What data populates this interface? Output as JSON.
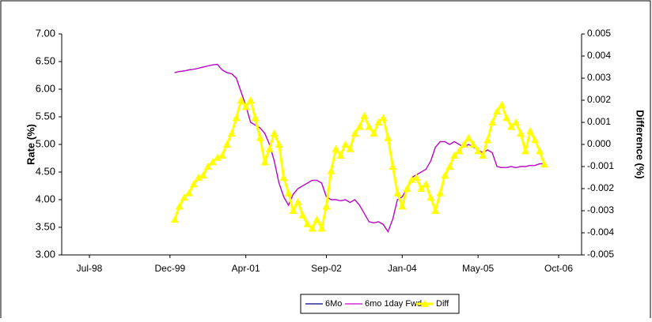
{
  "chart_data": {
    "type": "line",
    "y_label": "Rate (%)",
    "y2_label": "Difference (%)",
    "x": [
      "Jan-00",
      "Feb-00",
      "Mar-00",
      "Apr-00",
      "May-00",
      "Jun-00",
      "Jul-00",
      "Aug-00",
      "Sep-00",
      "Oct-00",
      "Nov-00",
      "Dec-00",
      "Jan-01",
      "Feb-01",
      "Mar-01",
      "Apr-01",
      "May-01",
      "Jun-01",
      "Jul-01",
      "Aug-01",
      "Sep-01",
      "Oct-01",
      "Nov-01",
      "Dec-01",
      "Jan-02",
      "Feb-02",
      "Mar-02",
      "Apr-02",
      "May-02",
      "Jun-02",
      "Jul-02",
      "Aug-02",
      "Sep-02",
      "Oct-02",
      "Nov-02",
      "Dec-02",
      "Jan-03",
      "Feb-03",
      "Mar-03",
      "Apr-03",
      "May-03",
      "Jun-03",
      "Jul-03",
      "Aug-03",
      "Sep-03",
      "Oct-03",
      "Nov-03",
      "Dec-03",
      "Jan-04",
      "Feb-04",
      "Mar-04",
      "Apr-04",
      "May-04",
      "Jun-04",
      "Jul-04",
      "Aug-04",
      "Sep-04",
      "Oct-04",
      "Nov-04",
      "Dec-04",
      "Jan-05",
      "Feb-05",
      "Mar-05",
      "Apr-05",
      "May-05",
      "Jun-05",
      "Jul-05",
      "Aug-05",
      "Sep-05",
      "Oct-05",
      "Nov-05",
      "Dec-05",
      "Jan-06",
      "Feb-06",
      "Mar-06",
      "Apr-06",
      "May-06",
      "Jun-06",
      "Jul-06"
    ],
    "series": [
      {
        "name": "6Mo",
        "color": "#000080",
        "values": [
          6.3,
          6.32,
          6.33,
          6.35,
          6.36,
          6.38,
          6.4,
          6.42,
          6.44,
          6.45,
          6.35,
          6.3,
          6.28,
          6.2,
          5.95,
          5.7,
          5.4,
          5.35,
          5.3,
          5.2,
          5.0,
          4.7,
          4.3,
          4.05,
          3.9,
          4.1,
          4.2,
          4.25,
          4.3,
          4.35,
          4.35,
          4.3,
          4.05,
          4.0,
          4.0,
          3.98,
          4.0,
          3.95,
          4.0,
          3.9,
          3.75,
          3.6,
          3.58,
          3.6,
          3.55,
          3.42,
          3.65,
          4.0,
          4.05,
          4.2,
          4.4,
          4.45,
          4.5,
          4.55,
          4.7,
          4.95,
          5.05,
          5.05,
          5.0,
          5.05,
          5.0,
          4.95,
          5.0,
          4.95,
          4.9,
          4.85,
          4.9,
          4.85,
          4.6,
          4.58,
          4.58,
          4.6,
          4.58,
          4.6,
          4.6,
          4.62,
          4.62,
          4.65,
          4.65
        ]
      },
      {
        "name": "6mo 1day Fwd",
        "color": "#cc00cc",
        "values": [
          6.3,
          6.32,
          6.33,
          6.35,
          6.36,
          6.38,
          6.4,
          6.42,
          6.44,
          6.45,
          6.35,
          6.3,
          6.28,
          6.2,
          5.95,
          5.7,
          5.4,
          5.35,
          5.3,
          5.2,
          5.0,
          4.7,
          4.3,
          4.05,
          3.9,
          4.1,
          4.2,
          4.25,
          4.3,
          4.35,
          4.35,
          4.3,
          4.05,
          4.0,
          4.0,
          3.98,
          4.0,
          3.95,
          4.0,
          3.9,
          3.75,
          3.6,
          3.58,
          3.6,
          3.55,
          3.42,
          3.65,
          4.0,
          4.05,
          4.2,
          4.4,
          4.45,
          4.5,
          4.55,
          4.7,
          4.95,
          5.05,
          5.05,
          5.0,
          5.05,
          5.0,
          4.95,
          5.0,
          4.95,
          4.9,
          4.85,
          4.9,
          4.85,
          4.6,
          4.58,
          4.58,
          4.6,
          4.58,
          4.6,
          4.6,
          4.62,
          4.62,
          4.65,
          4.65
        ]
      },
      {
        "name": "Diff",
        "color": "#ffff00",
        "axis": "y2",
        "marker": "triangle",
        "values": [
          -0.0034,
          -0.0028,
          -0.0024,
          -0.0022,
          -0.0018,
          -0.0015,
          -0.0014,
          -0.001,
          -0.0008,
          -0.0006,
          -0.0005,
          0.0,
          0.0005,
          0.0012,
          0.002,
          0.0017,
          0.002,
          0.0012,
          0.0003,
          -0.0008,
          -0.0002,
          0.0005,
          0.0,
          -0.0015,
          -0.0022,
          -0.003,
          -0.0026,
          -0.0032,
          -0.0036,
          -0.0038,
          -0.0034,
          -0.0038,
          -0.0028,
          -0.0012,
          -0.0002,
          -0.0005,
          0.0,
          -0.0002,
          0.0005,
          0.0008,
          0.0013,
          0.0008,
          0.0005,
          0.001,
          0.0012,
          0.0003,
          -0.001,
          -0.0022,
          -0.0028,
          -0.002,
          -0.0016,
          -0.0015,
          -0.002,
          -0.0018,
          -0.0024,
          -0.003,
          -0.0022,
          -0.0014,
          -0.001,
          -0.0005,
          -0.0003,
          0.0,
          0.0003,
          0.0,
          -0.0003,
          -0.0005,
          0.0002,
          0.001,
          0.0015,
          0.0018,
          0.0012,
          0.0008,
          0.001,
          0.0005,
          -0.0003,
          0.0006,
          0.0002,
          -0.0003,
          -0.0009
        ]
      }
    ],
    "xlim": [
      "Jul-98",
      "Oct-06"
    ],
    "xticks": [
      "Jul-98",
      "Dec-99",
      "Apr-01",
      "Sep-02",
      "Jan-04",
      "May-05",
      "Oct-06"
    ],
    "ylim": [
      3,
      7
    ],
    "yticks": [
      {
        "value": 3,
        "label": "3.00"
      },
      {
        "value": 3.5,
        "label": "3.50"
      },
      {
        "value": 4,
        "label": "4.00"
      },
      {
        "value": 4.5,
        "label": "4.50"
      },
      {
        "value": 5,
        "label": "5.00"
      },
      {
        "value": 5.5,
        "label": "5.50"
      },
      {
        "value": 6,
        "label": "6.00"
      },
      {
        "value": 6.5,
        "label": "6.50"
      },
      {
        "value": 7,
        "label": "7.00"
      }
    ],
    "y2lim": [
      -0.005,
      0.005
    ],
    "y2ticks": [
      -0.005,
      -0.004,
      -0.003,
      -0.002,
      -0.001,
      {
        "value": 0,
        "label": "0.000"
      },
      0.001,
      0.002,
      0.003,
      0.004,
      0.005
    ],
    "grid": false,
    "legend": "bottom"
  }
}
